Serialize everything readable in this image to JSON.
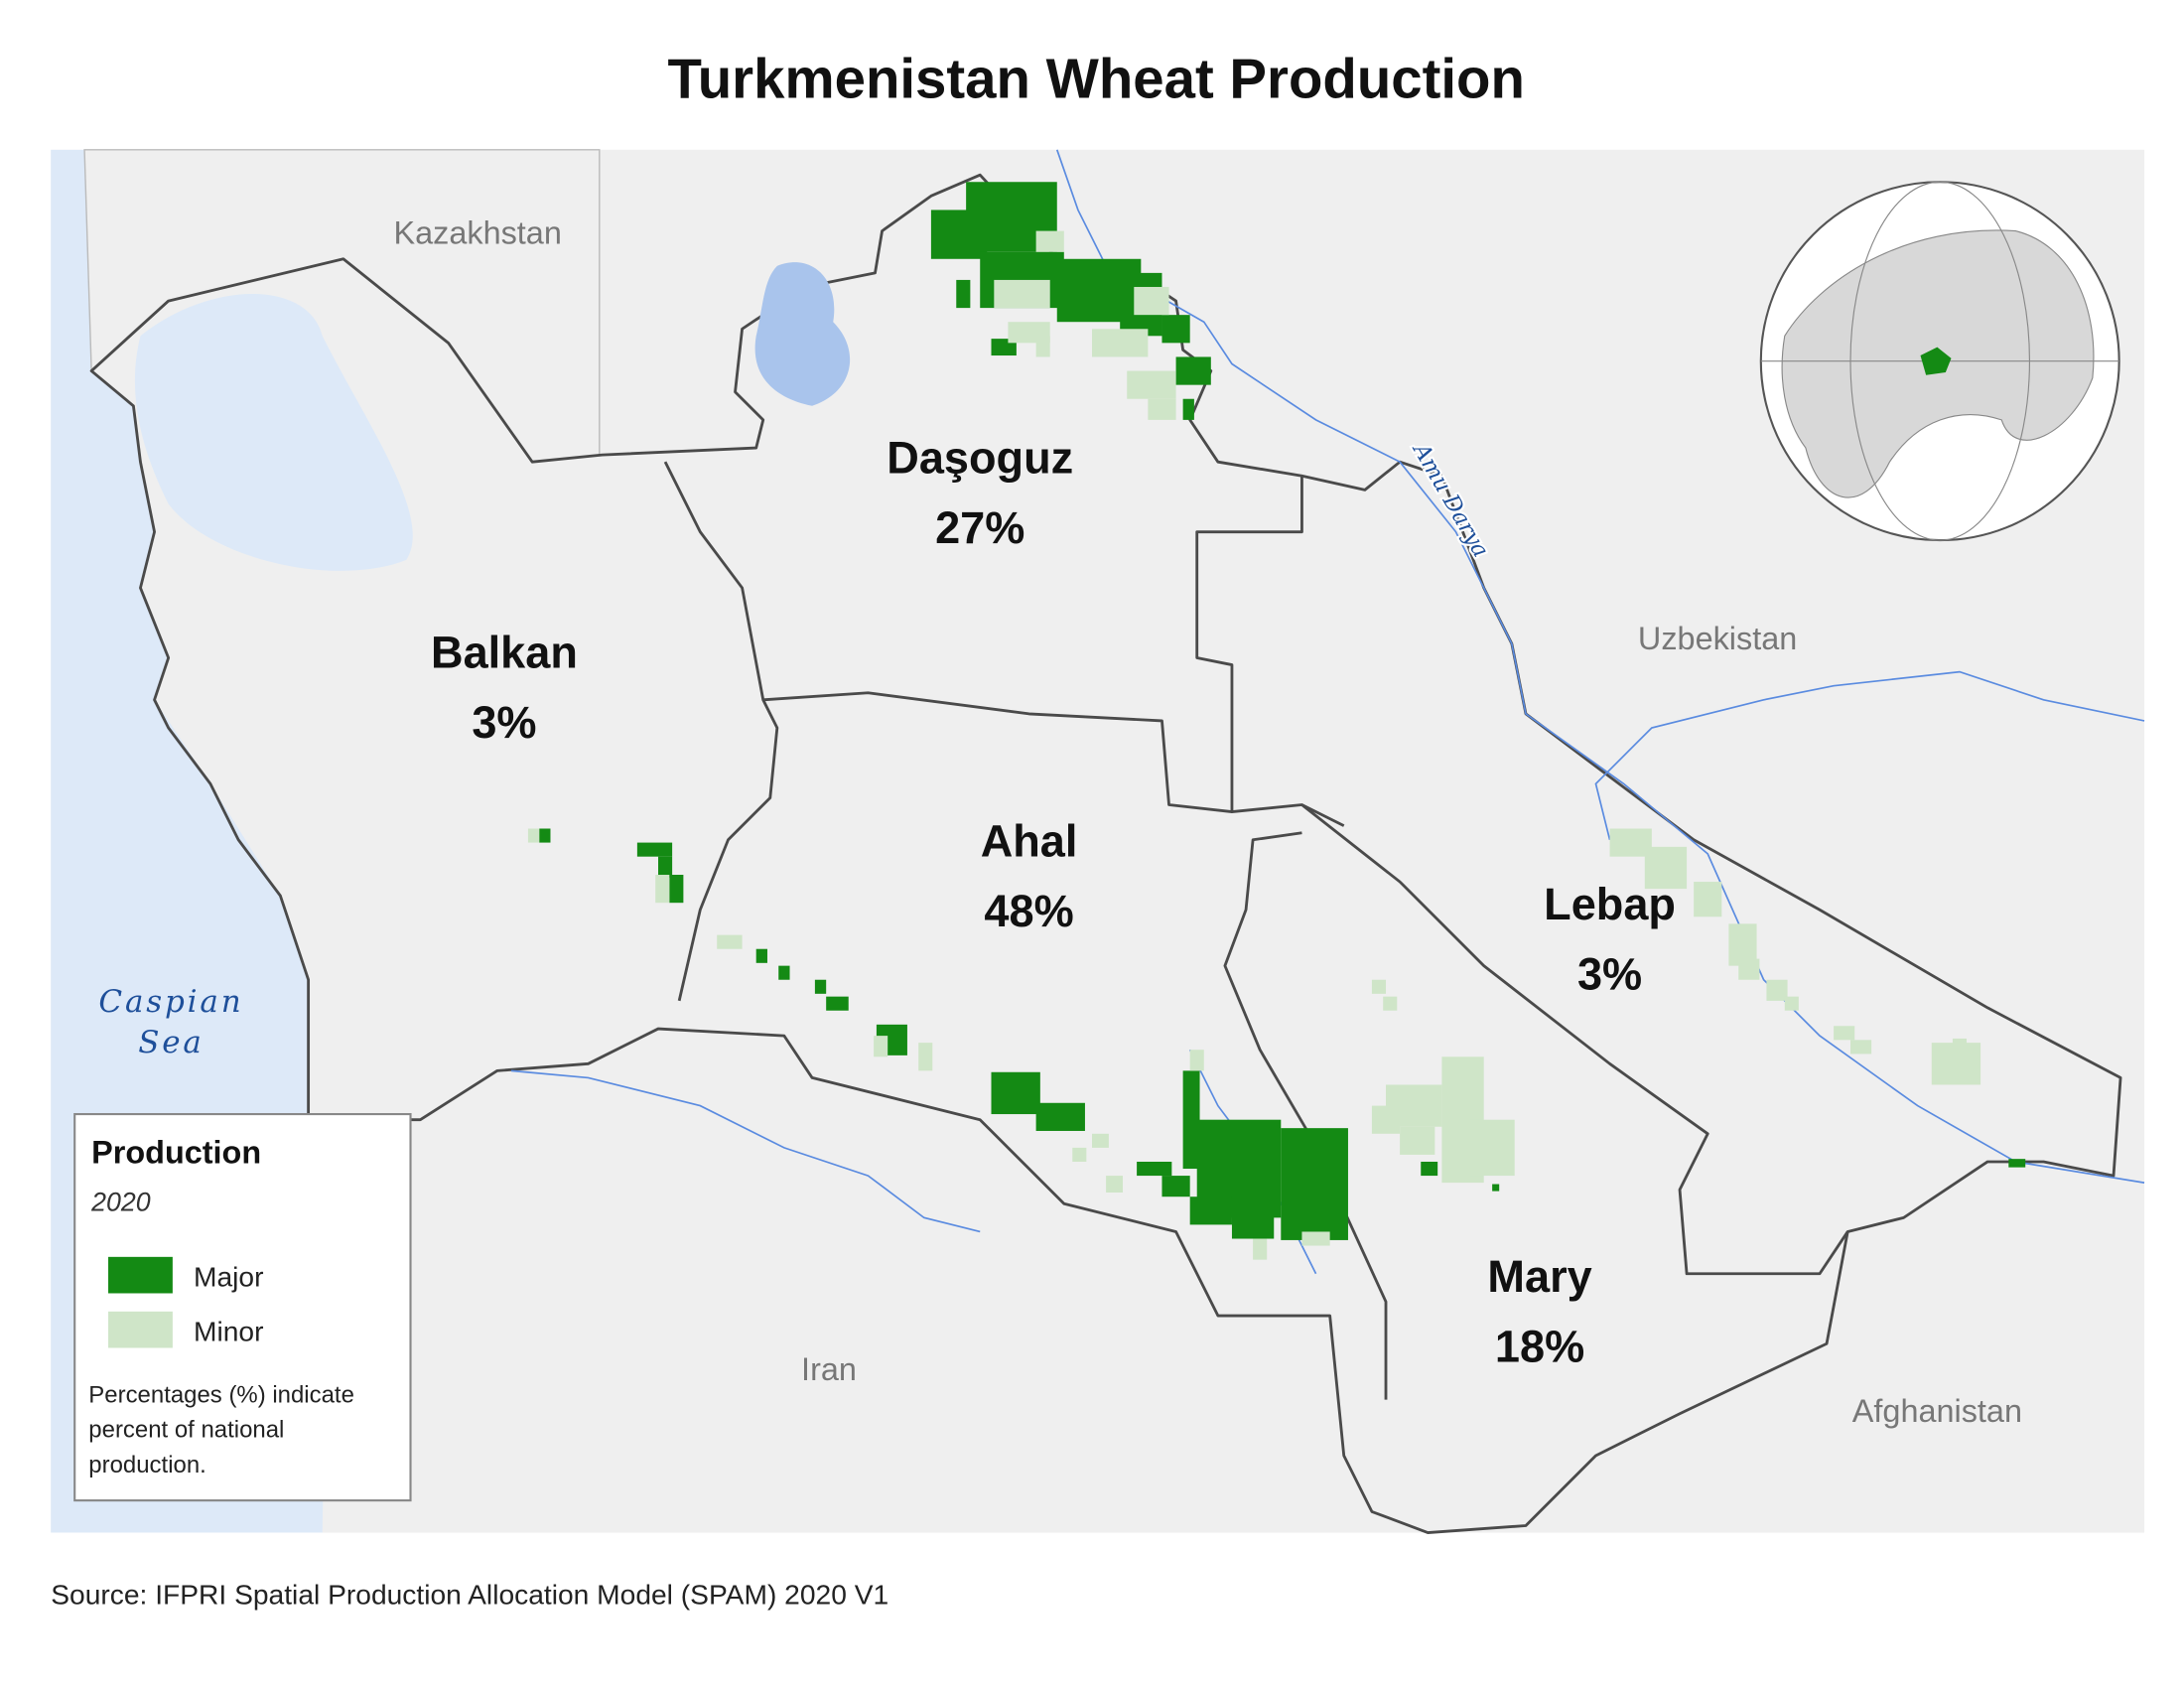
{
  "title": "Turkmenistan Wheat Production",
  "regions": [
    {
      "name": "Daşoguz",
      "share": "27%"
    },
    {
      "name": "Balkan",
      "share": "3%"
    },
    {
      "name": "Ahal",
      "share": "48%"
    },
    {
      "name": "Lebap",
      "share": "3%"
    },
    {
      "name": "Mary",
      "share": "18%"
    }
  ],
  "countries": [
    "Kazakhstan",
    "Uzbekistan",
    "Iran",
    "Afghanistan"
  ],
  "water": {
    "sea": [
      "Caspian",
      "Sea"
    ],
    "river": "Amu Darya"
  },
  "legend": {
    "title": "Production",
    "year": "2020",
    "items": [
      {
        "label": "Major",
        "color": "#148a14"
      },
      {
        "label": "Minor",
        "color": "#cfe5c8"
      }
    ],
    "note": [
      "Percentages (%) indicate",
      "percent of national",
      "production."
    ]
  },
  "source": "Source: IFPRI Spatial Production Allocation Model (SPAM) 2020 V1"
}
